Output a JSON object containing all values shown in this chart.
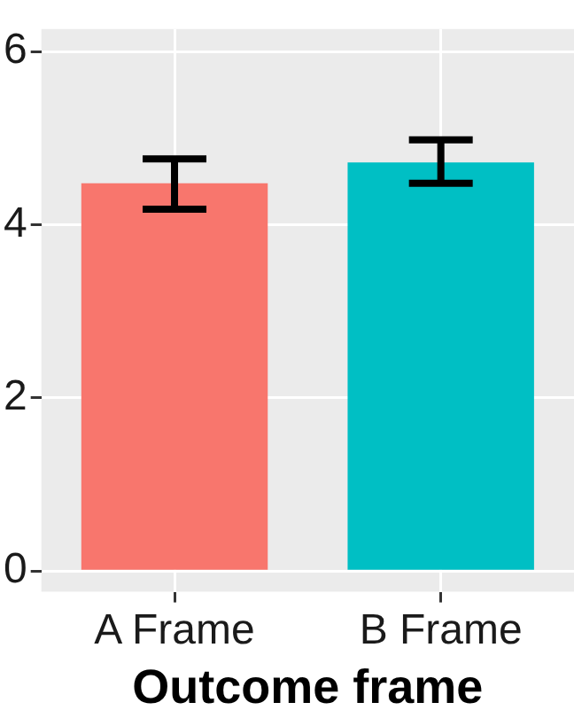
{
  "chart_data": {
    "type": "bar",
    "xlabel": "Outcome frame",
    "categories": [
      "A Frame",
      "B Frame"
    ],
    "values": [
      4.48,
      4.72
    ],
    "colors": [
      "#f8766d",
      "#00bfc4"
    ],
    "errors": [
      [
        4.18,
        4.76
      ],
      [
        4.48,
        4.98
      ]
    ],
    "ylim": [
      -0.24,
      6.26
    ],
    "yticks": [
      0,
      2,
      4,
      6
    ],
    "grid": true,
    "legend": false
  }
}
